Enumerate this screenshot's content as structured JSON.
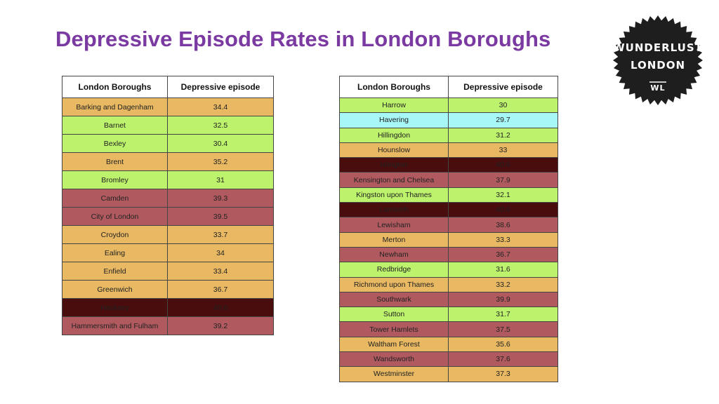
{
  "title": "Depressive Episode Rates in London Boroughs",
  "logo": {
    "line1": "WUNDERLUST",
    "line2": "LONDON",
    "mark": "WL"
  },
  "colors": {
    "high": "#4a0d0d",
    "elevated": "#b05a5f",
    "moderate": "#e8b862",
    "low": "#bdf26d",
    "lowest": "#a6f7f5"
  },
  "chart_data": {
    "type": "table",
    "columns": [
      "London Boroughs",
      "Depressive episode"
    ],
    "left_table": [
      {
        "borough": "Barking and Dagenham",
        "value": "34.4",
        "color": "#e8b862"
      },
      {
        "borough": "Barnet",
        "value": "32.5",
        "color": "#bdf26d"
      },
      {
        "borough": "Bexley",
        "value": "30.4",
        "color": "#bdf26d"
      },
      {
        "borough": "Brent",
        "value": "35.2",
        "color": "#e8b862"
      },
      {
        "borough": "Bromley",
        "value": "31",
        "color": "#bdf26d"
      },
      {
        "borough": "Camden",
        "value": "39.3",
        "color": "#b05a5f"
      },
      {
        "borough": "City of London",
        "value": "39.5",
        "color": "#b05a5f"
      },
      {
        "borough": "Croydon",
        "value": "33.7",
        "color": "#e8b862"
      },
      {
        "borough": "Ealing",
        "value": "34",
        "color": "#e8b862"
      },
      {
        "borough": "Enfield",
        "value": "33.4",
        "color": "#e8b862"
      },
      {
        "borough": "Greenwich",
        "value": "36.7",
        "color": "#e8b862"
      },
      {
        "borough": "Hackney",
        "value": "40.6",
        "color": "#4a0d0d"
      },
      {
        "borough": "Hammersmith and Fulham",
        "value": "39.2",
        "color": "#b05a5f"
      }
    ],
    "right_table": [
      {
        "borough": "Harrow",
        "value": "30",
        "color": "#bdf26d"
      },
      {
        "borough": "Havering",
        "value": "29.7",
        "color": "#a6f7f5"
      },
      {
        "borough": "Hillingdon",
        "value": "31.2",
        "color": "#bdf26d"
      },
      {
        "borough": "Hounslow",
        "value": "33",
        "color": "#e8b862"
      },
      {
        "borough": "Islington",
        "value": "40.6",
        "color": "#4a0d0d"
      },
      {
        "borough": "Kensington and Chelsea",
        "value": "37.9",
        "color": "#b05a5f"
      },
      {
        "borough": "Kingston upon Thames",
        "value": "32.1",
        "color": "#bdf26d"
      },
      {
        "borough": "Lambeth",
        "value": "40.6",
        "color": "#4a0d0d"
      },
      {
        "borough": "Lewisham",
        "value": "38.6",
        "color": "#b05a5f"
      },
      {
        "borough": "Merton",
        "value": "33.3",
        "color": "#e8b862"
      },
      {
        "borough": "Newham",
        "value": "36.7",
        "color": "#b05a5f"
      },
      {
        "borough": "Redbridge",
        "value": "31.6",
        "color": "#bdf26d"
      },
      {
        "borough": "Richmond upon Thames",
        "value": "33.2",
        "color": "#e8b862"
      },
      {
        "borough": "Southwark",
        "value": "39.9",
        "color": "#b05a5f"
      },
      {
        "borough": "Sutton",
        "value": "31.7",
        "color": "#bdf26d"
      },
      {
        "borough": "Tower Hamlets",
        "value": "37.5",
        "color": "#b05a5f"
      },
      {
        "borough": "Waltham Forest",
        "value": "35.6",
        "color": "#e8b862"
      },
      {
        "borough": "Wandsworth",
        "value": "37.6",
        "color": "#b05a5f"
      },
      {
        "borough": "Westminster",
        "value": "37.3",
        "color": "#e8b862"
      }
    ]
  }
}
